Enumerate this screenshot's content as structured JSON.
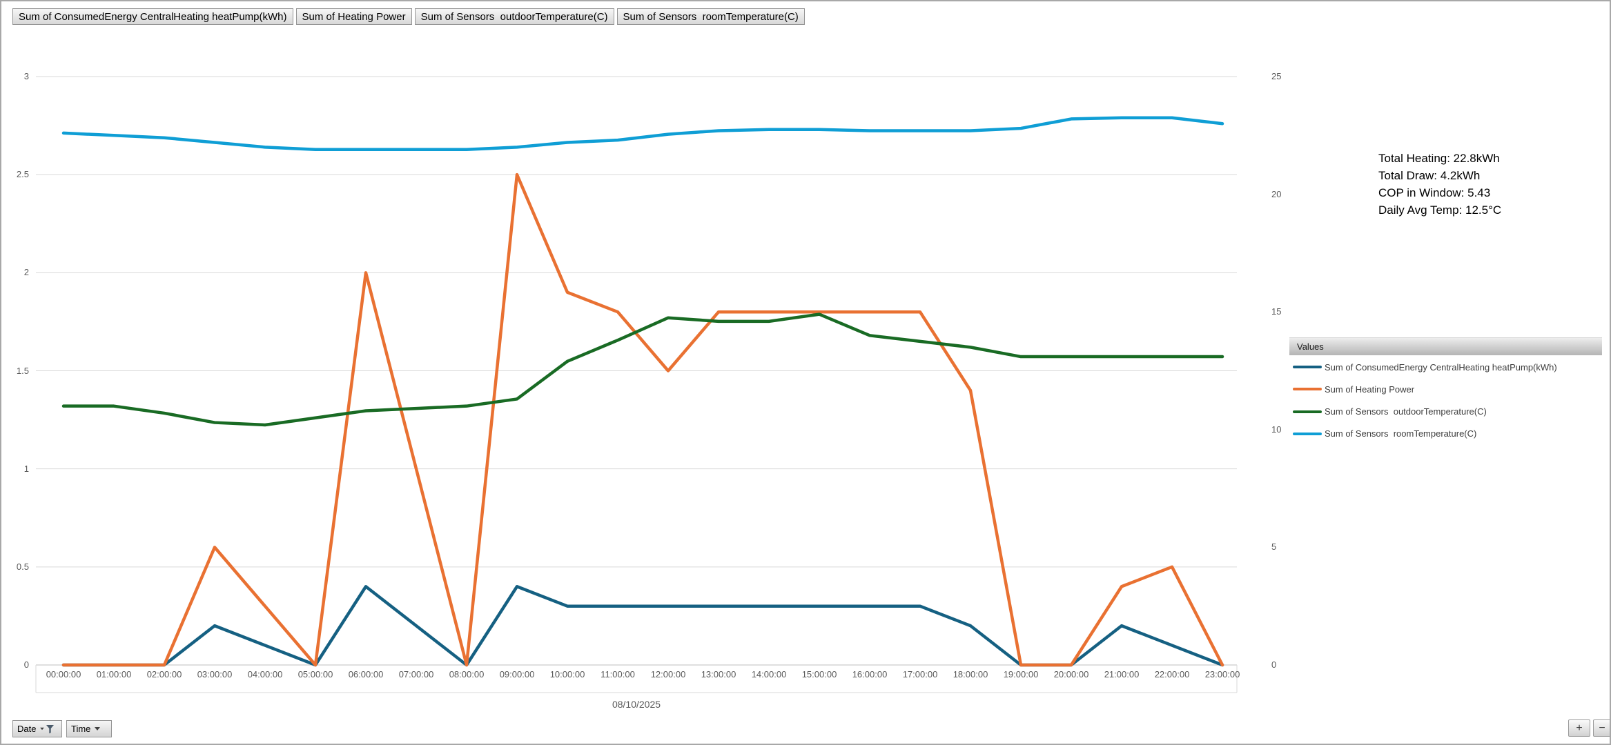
{
  "field_buttons": [
    {
      "label": "Sum of ConsumedEnergy CentralHeating heatPump(kWh)"
    },
    {
      "label": "Sum of Heating Power"
    },
    {
      "label": "Sum of Sensors  outdoorTemperature(C)"
    },
    {
      "label": "Sum of Sensors  roomTemperature(C)"
    }
  ],
  "annotation": {
    "lines": [
      "Total Heating: 22.8kWh",
      "Total Draw: 4.2kWh",
      "COP in Window: 5.43",
      "Daily Avg Temp: 12.5°C"
    ]
  },
  "legend": {
    "header": "Values",
    "entries": [
      {
        "label": "Sum of ConsumedEnergy CentralHeating heatPump(kWh)",
        "color": "#156082"
      },
      {
        "label": "Sum of Heating Power",
        "color": "#E97132"
      },
      {
        "label": "Sum of Sensors  outdoorTemperature(C)",
        "color": "#196B24"
      },
      {
        "label": "Sum of Sensors  roomTemperature(C)",
        "color": "#0F9ED5"
      }
    ]
  },
  "axis_buttons": {
    "date_label": "Date",
    "time_label": "Time"
  },
  "drill_buttons": {
    "expand": "+",
    "collapse": "−"
  },
  "chart_data": {
    "type": "line",
    "x": [
      "00:00:00",
      "01:00:00",
      "02:00:00",
      "03:00:00",
      "04:00:00",
      "05:00:00",
      "06:00:00",
      "07:00:00",
      "08:00:00",
      "09:00:00",
      "10:00:00",
      "11:00:00",
      "12:00:00",
      "13:00:00",
      "14:00:00",
      "15:00:00",
      "16:00:00",
      "17:00:00",
      "18:00:00",
      "19:00:00",
      "20:00:00",
      "21:00:00",
      "22:00:00",
      "23:00:00"
    ],
    "x_group_label": "08/10/2025",
    "series": [
      {
        "name": "Sum of ConsumedEnergy CentralHeating heatPump(kWh)",
        "axis": "left",
        "color": "#156082",
        "values": [
          0,
          0,
          0,
          0.2,
          0.1,
          0,
          0.4,
          0.2,
          0,
          0.4,
          0.3,
          0.3,
          0.3,
          0.3,
          0.3,
          0.3,
          0.3,
          0.3,
          0.2,
          0,
          0,
          0.2,
          0.1,
          0
        ]
      },
      {
        "name": "Sum of Heating Power",
        "axis": "left",
        "color": "#E97132",
        "values": [
          0,
          0,
          0,
          0.6,
          0.3,
          0,
          2.0,
          1.0,
          0,
          2.5,
          1.9,
          1.8,
          1.5,
          1.8,
          1.8,
          1.8,
          1.8,
          1.8,
          1.4,
          0,
          0,
          0.4,
          0.5,
          0
        ]
      },
      {
        "name": "Sum of Sensors  outdoorTemperature(C)",
        "axis": "right",
        "color": "#196B24",
        "values": [
          11.0,
          11.0,
          10.7,
          10.3,
          10.2,
          10.5,
          10.8,
          10.9,
          11.0,
          11.3,
          12.9,
          13.8,
          14.75,
          14.6,
          14.6,
          14.9,
          14.0,
          13.75,
          13.5,
          13.1,
          13.1,
          13.1,
          13.1,
          13.1
        ]
      },
      {
        "name": "Sum of Sensors  roomTemperature(C)",
        "axis": "right",
        "color": "#0F9ED5",
        "values": [
          22.6,
          22.5,
          22.4,
          22.2,
          22.0,
          21.9,
          21.9,
          21.9,
          21.9,
          22.0,
          22.2,
          22.3,
          22.55,
          22.7,
          22.75,
          22.75,
          22.7,
          22.7,
          22.7,
          22.8,
          23.2,
          23.25,
          23.25,
          23.0
        ]
      }
    ],
    "left_axis": {
      "min": 0,
      "max": 3,
      "ticks": [
        0,
        0.5,
        1,
        1.5,
        2,
        2.5,
        3
      ]
    },
    "right_axis": {
      "min": 0,
      "max": 25,
      "ticks": [
        0,
        5,
        10,
        15,
        20,
        25
      ]
    },
    "grid": true,
    "legend_position": "right"
  }
}
